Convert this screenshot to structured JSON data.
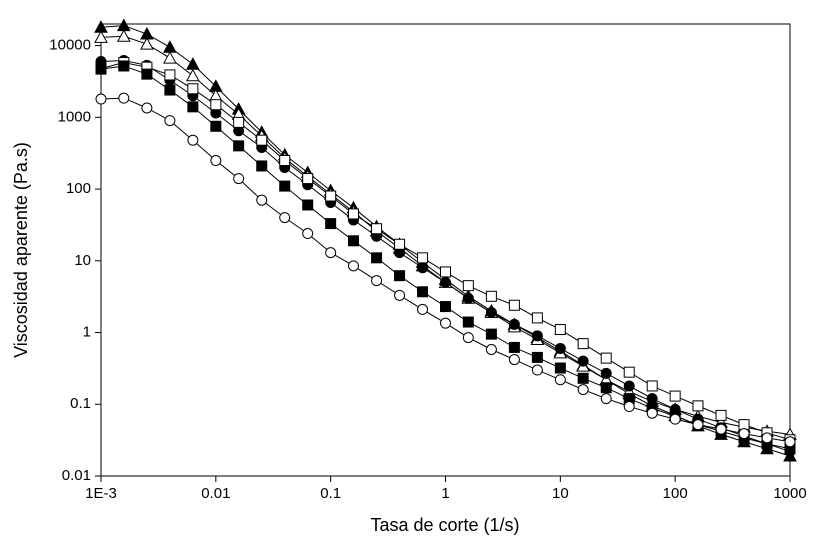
{
  "chart_data": {
    "type": "scatter-line",
    "xlabel": "Tasa de corte (1/s)",
    "ylabel": "Viscosidad aparente (Pa.s)",
    "xscale": "log",
    "yscale": "log",
    "xlim": [
      0.001,
      1000
    ],
    "ylim": [
      0.01,
      20000
    ],
    "xticks": [
      {
        "value": 0.001,
        "label": "1E-3"
      },
      0.01,
      0.1,
      1,
      10,
      100,
      1000
    ],
    "yticks": [
      0.01,
      0.1,
      1,
      10,
      100,
      1000,
      10000
    ],
    "x": [
      0.001,
      0.00158,
      0.00251,
      0.00398,
      0.00631,
      0.01,
      0.0158,
      0.0251,
      0.0398,
      0.0631,
      0.1,
      0.158,
      0.251,
      0.398,
      0.631,
      1,
      1.58,
      2.51,
      3.98,
      6.31,
      10,
      15.8,
      25.1,
      39.8,
      63.1,
      100,
      158,
      251,
      398,
      631,
      1000
    ],
    "series": [
      {
        "marker": "triangle",
        "filled": true,
        "color": "#000000",
        "values": [
          18000,
          19000,
          14500,
          9500,
          5500,
          2700,
          1300,
          620,
          300,
          170,
          95,
          55,
          30,
          17,
          9.5,
          5.5,
          3.2,
          2.0,
          1.3,
          0.85,
          0.55,
          0.35,
          0.22,
          0.14,
          0.095,
          0.07,
          0.05,
          0.038,
          0.03,
          0.024,
          0.019
        ]
      },
      {
        "marker": "triangle",
        "filled": false,
        "color": "#000000",
        "values": [
          13000,
          13500,
          10500,
          6700,
          3800,
          2000,
          1100,
          550,
          270,
          150,
          85,
          48,
          26,
          15,
          8.5,
          5,
          3,
          1.9,
          1.2,
          0.8,
          0.52,
          0.34,
          0.22,
          0.15,
          0.11,
          0.085,
          0.068,
          0.056,
          0.048,
          0.042,
          0.038
        ]
      },
      {
        "marker": "circle",
        "filled": true,
        "color": "#000000",
        "values": [
          6000,
          6200,
          5300,
          3300,
          2000,
          1150,
          650,
          380,
          200,
          115,
          65,
          37,
          22,
          13,
          8,
          5,
          3,
          1.9,
          1.3,
          0.9,
          0.6,
          0.4,
          0.27,
          0.18,
          0.12,
          0.085,
          0.062,
          0.047,
          0.036,
          0.028,
          0.022
        ]
      },
      {
        "marker": "square",
        "filled": false,
        "color": "#000000",
        "values": [
          4800,
          5800,
          5000,
          3900,
          2500,
          1500,
          850,
          480,
          250,
          140,
          80,
          45,
          28,
          17,
          11,
          7,
          4.5,
          3.2,
          2.4,
          1.6,
          1.1,
          0.7,
          0.44,
          0.28,
          0.18,
          0.13,
          0.095,
          0.07,
          0.052,
          0.04,
          0.032
        ]
      },
      {
        "marker": "square",
        "filled": true,
        "color": "#000000",
        "values": [
          4700,
          5200,
          4000,
          2400,
          1400,
          750,
          400,
          210,
          110,
          60,
          33,
          19,
          11,
          6.2,
          3.7,
          2.3,
          1.4,
          0.95,
          0.62,
          0.45,
          0.32,
          0.23,
          0.17,
          0.12,
          0.088,
          0.068,
          0.052,
          0.042,
          0.034,
          0.028,
          0.024
        ]
      },
      {
        "marker": "circle",
        "filled": false,
        "color": "#000000",
        "values": [
          1800,
          1850,
          1350,
          900,
          480,
          250,
          140,
          70,
          40,
          24,
          13,
          8.5,
          5.3,
          3.3,
          2.1,
          1.35,
          0.85,
          0.58,
          0.42,
          0.3,
          0.22,
          0.16,
          0.12,
          0.093,
          0.075,
          0.062,
          0.052,
          0.045,
          0.039,
          0.034,
          0.03
        ]
      }
    ]
  }
}
